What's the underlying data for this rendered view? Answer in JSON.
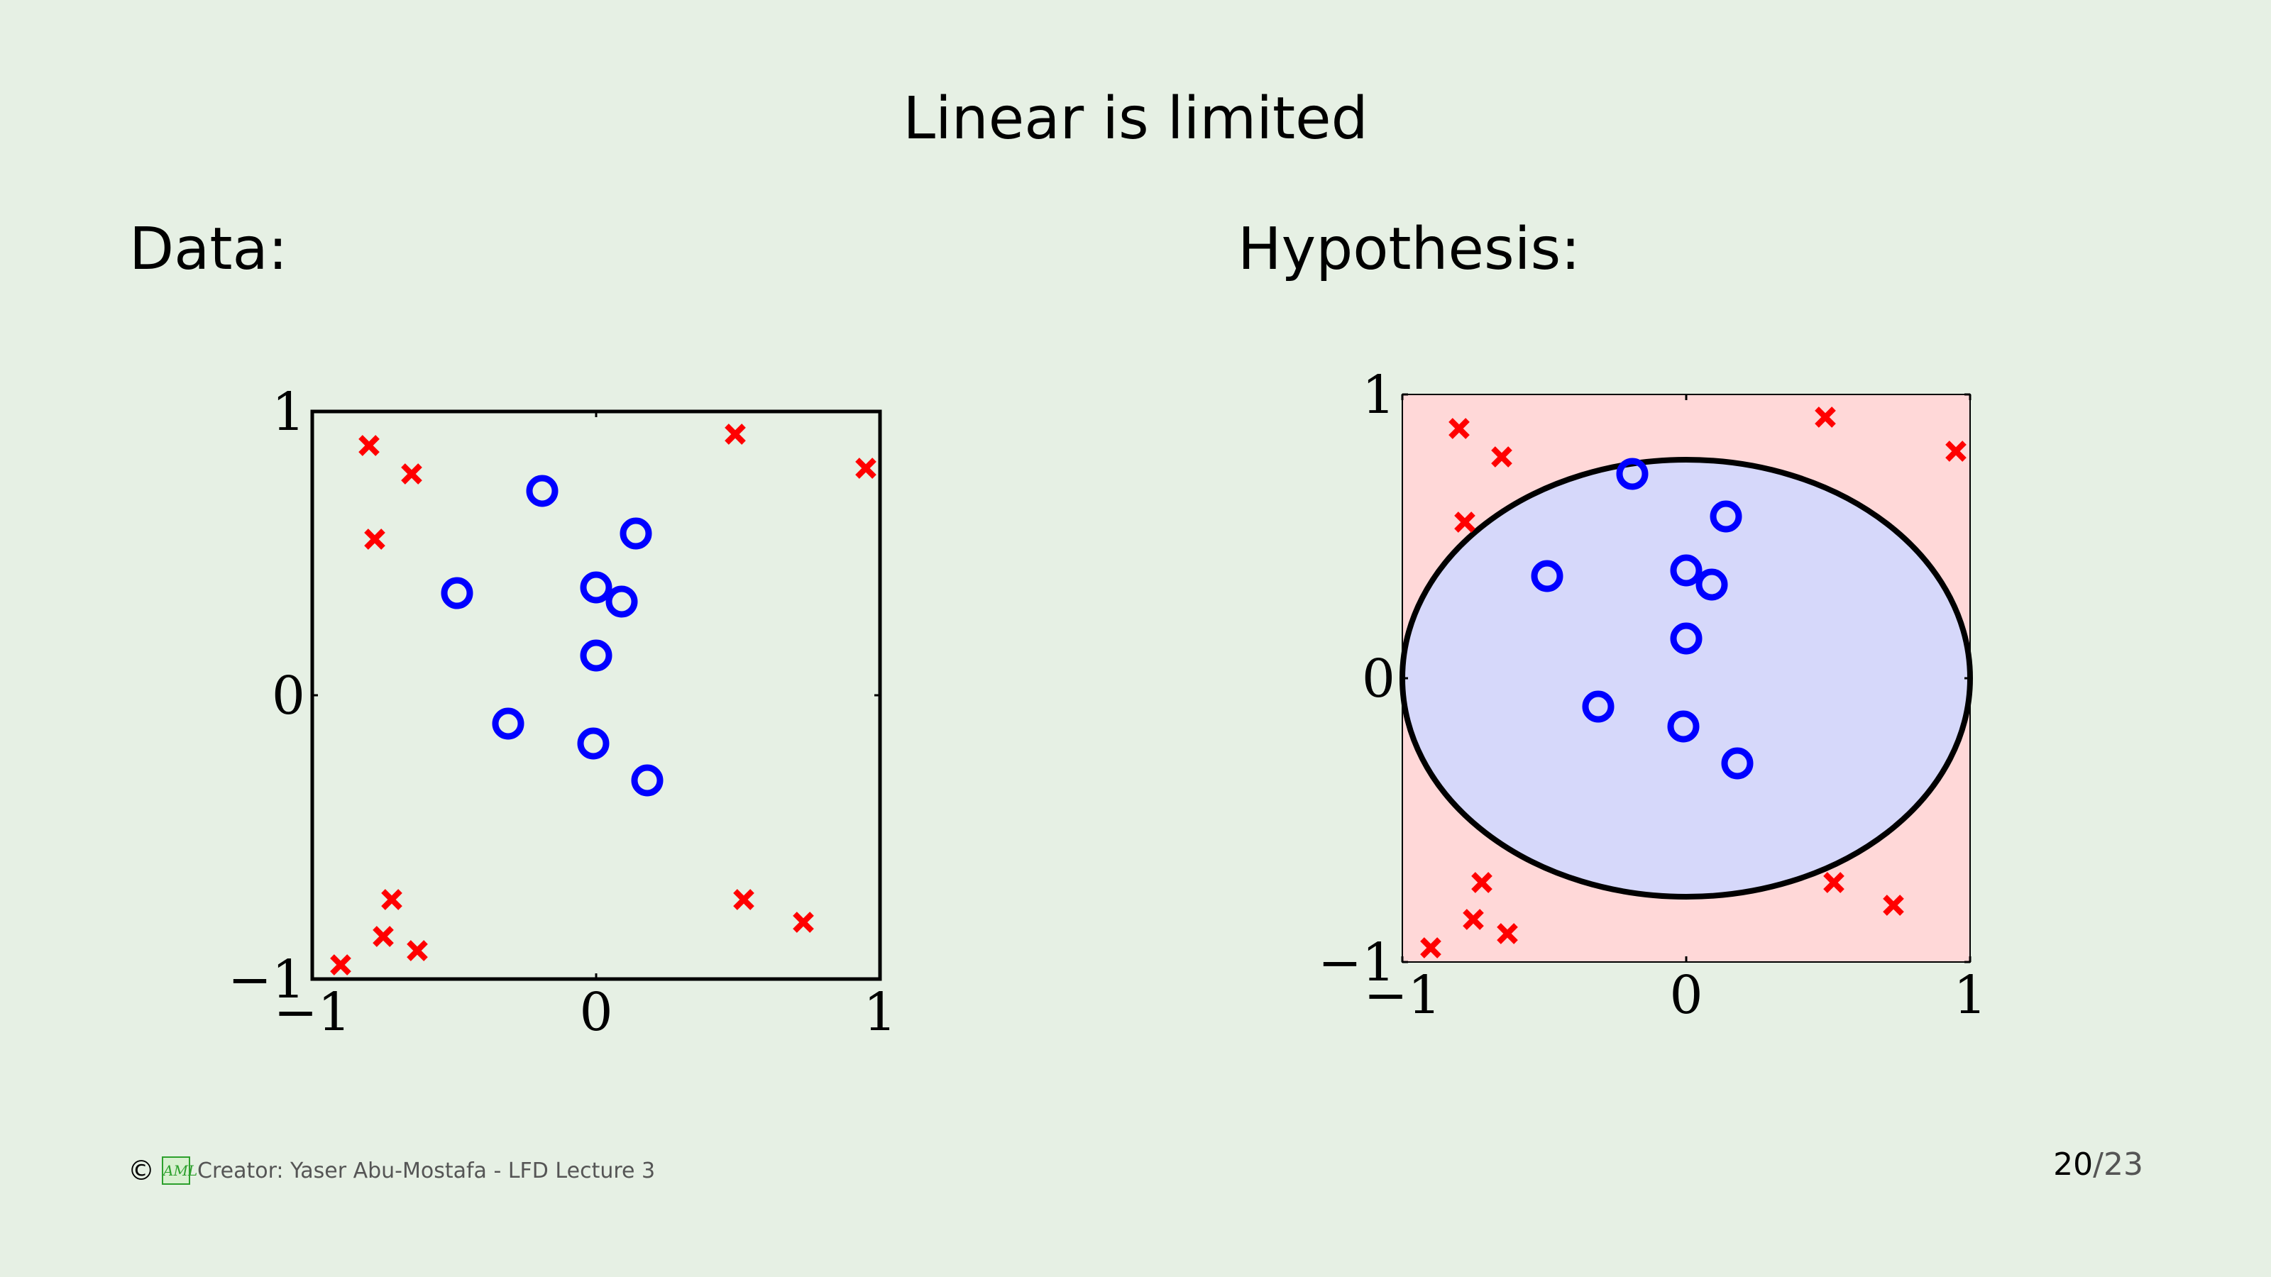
{
  "slide": {
    "title": "Linear is limited",
    "left_label": "Data:",
    "right_label": "Hypothesis:",
    "footer_text": "Creator: Yaser Abu-Mostafa - LFD Lecture 3",
    "copyright_symbol": "©",
    "logo_text": "AML",
    "page_current": "20",
    "page_sep": "/",
    "page_total": "23"
  },
  "chart_data": [
    {
      "type": "scatter",
      "title": "",
      "xlabel": "",
      "ylabel": "",
      "xlim": [
        -1,
        1
      ],
      "ylim": [
        -1,
        1
      ],
      "xticks": [
        "−1",
        "0",
        "1"
      ],
      "yticks": [
        "−1",
        "0",
        "1"
      ],
      "grid": false,
      "series": [
        {
          "marker": "x",
          "color": "#ff0000",
          "points": [
            [
              -0.8,
              0.88
            ],
            [
              -0.65,
              0.78
            ],
            [
              -0.78,
              0.55
            ],
            [
              0.49,
              0.92
            ],
            [
              0.95,
              0.8
            ],
            [
              -0.72,
              -0.72
            ],
            [
              -0.75,
              -0.85
            ],
            [
              -0.63,
              -0.9
            ],
            [
              -0.9,
              -0.95
            ],
            [
              0.52,
              -0.72
            ],
            [
              0.73,
              -0.8
            ]
          ]
        },
        {
          "marker": "o",
          "color": "#0000ff",
          "points": [
            [
              -0.19,
              0.72
            ],
            [
              0.14,
              0.57
            ],
            [
              -0.49,
              0.36
            ],
            [
              0.0,
              0.38
            ],
            [
              0.09,
              0.33
            ],
            [
              0.0,
              0.14
            ],
            [
              -0.31,
              -0.1
            ],
            [
              -0.01,
              -0.17
            ],
            [
              0.18,
              -0.3
            ]
          ]
        }
      ]
    },
    {
      "type": "scatter",
      "title": "",
      "xlabel": "",
      "ylabel": "",
      "xlim": [
        -1,
        1
      ],
      "ylim": [
        -1,
        1
      ],
      "xticks": [
        "−1",
        "0",
        "1"
      ],
      "yticks": [
        "−1",
        "0",
        "1"
      ],
      "grid": false,
      "background_color": "#ffd8d8",
      "region": {
        "shape": "ellipse",
        "cx": 0,
        "cy": 0,
        "rx": 1.0,
        "ry": 0.77,
        "fill": "#d6d8fa"
      },
      "series": [
        {
          "marker": "x",
          "color": "#ff0000",
          "points": [
            [
              -0.8,
              0.88
            ],
            [
              -0.65,
              0.78
            ],
            [
              -0.78,
              0.55
            ],
            [
              0.49,
              0.92
            ],
            [
              0.95,
              0.8
            ],
            [
              -0.72,
              -0.72
            ],
            [
              -0.75,
              -0.85
            ],
            [
              -0.63,
              -0.9
            ],
            [
              -0.9,
              -0.95
            ],
            [
              0.52,
              -0.72
            ],
            [
              0.73,
              -0.8
            ]
          ]
        },
        {
          "marker": "o",
          "color": "#0000ff",
          "points": [
            [
              -0.19,
              0.72
            ],
            [
              0.14,
              0.57
            ],
            [
              -0.49,
              0.36
            ],
            [
              0.0,
              0.38
            ],
            [
              0.09,
              0.33
            ],
            [
              0.0,
              0.14
            ],
            [
              -0.31,
              -0.1
            ],
            [
              -0.01,
              -0.17
            ],
            [
              0.18,
              -0.3
            ]
          ]
        }
      ]
    }
  ]
}
